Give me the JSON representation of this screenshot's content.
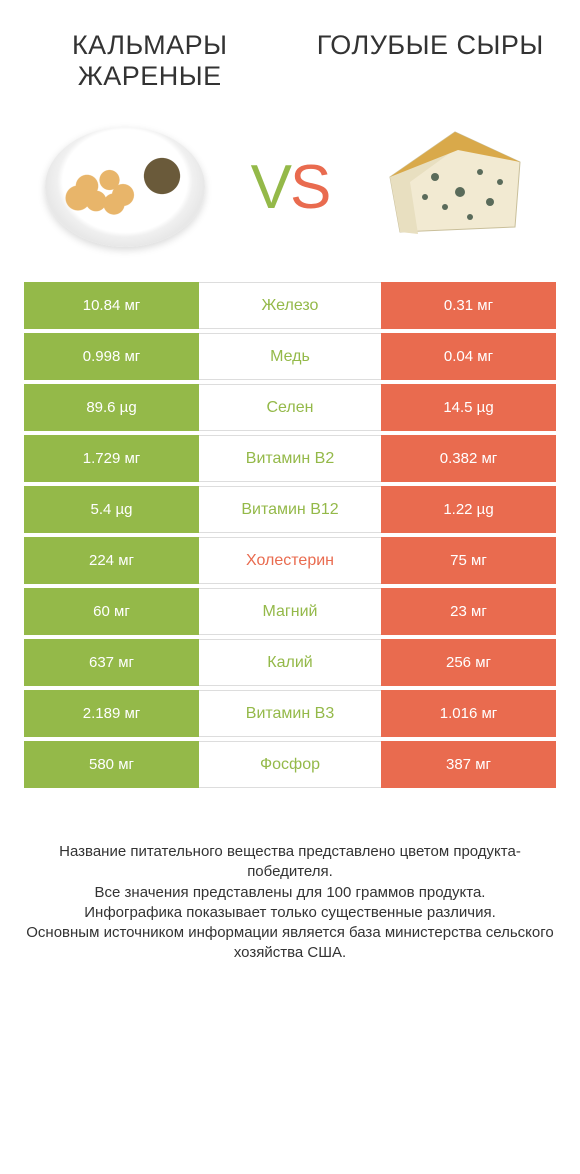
{
  "header": {
    "left_title": "КАЛЬМАРЫ ЖАРЕНЫЕ",
    "right_title": "ГОЛУБЫЕ СЫРЫ"
  },
  "vs": {
    "v": "V",
    "s": "S"
  },
  "colors": {
    "left": "#94b949",
    "right": "#e96b4f",
    "row_border": "#dddddd",
    "text": "#333333",
    "bg": "#ffffff"
  },
  "table": {
    "rows": [
      {
        "left": "10.84 мг",
        "label": "Железо",
        "right": "0.31 мг",
        "winner": "left"
      },
      {
        "left": "0.998 мг",
        "label": "Медь",
        "right": "0.04 мг",
        "winner": "left"
      },
      {
        "left": "89.6 µg",
        "label": "Селен",
        "right": "14.5 µg",
        "winner": "left"
      },
      {
        "left": "1.729 мг",
        "label": "Витамин B2",
        "right": "0.382 мг",
        "winner": "left"
      },
      {
        "left": "5.4 µg",
        "label": "Витамин B12",
        "right": "1.22 µg",
        "winner": "left"
      },
      {
        "left": "224 мг",
        "label": "Холестерин",
        "right": "75 мг",
        "winner": "right"
      },
      {
        "left": "60 мг",
        "label": "Магний",
        "right": "23 мг",
        "winner": "left"
      },
      {
        "left": "637 мг",
        "label": "Калий",
        "right": "256 мг",
        "winner": "left"
      },
      {
        "left": "2.189 мг",
        "label": "Витамин B3",
        "right": "1.016 мг",
        "winner": "left"
      },
      {
        "left": "580 мг",
        "label": "Фосфор",
        "right": "387 мг",
        "winner": "left"
      }
    ]
  },
  "footer": {
    "lines": [
      "Название питательного вещества представлено цветом продукта-победителя.",
      "Все значения представлены для 100 граммов продукта.",
      "Инфографика показывает только существенные различия.",
      "Основным источником информации является база министерства сельского хозяйства США."
    ]
  }
}
